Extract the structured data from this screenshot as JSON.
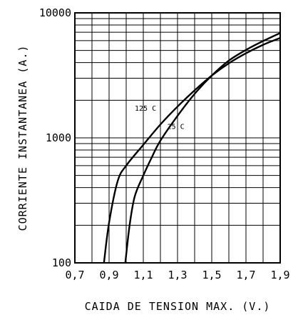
{
  "chart_data": {
    "type": "line",
    "xlabel": "CAIDA DE TENSION MAX. (V.)",
    "ylabel": "CORRIENTE INSTANTANEA (A.)",
    "xlim": [
      0.7,
      1.9
    ],
    "ylim": [
      100,
      10000
    ],
    "yscale": "log",
    "grid": true,
    "x_ticks": [
      0.7,
      0.9,
      1.1,
      1.3,
      1.5,
      1.7,
      1.9
    ],
    "x_tick_labels": [
      "0,7",
      "0,9",
      "1,1",
      "1,3",
      "1,5",
      "1,7",
      "1,9"
    ],
    "y_tick_labels": [
      {
        "value": 10000,
        "label": "10000"
      },
      {
        "value": 1000,
        "label": "1000"
      },
      {
        "value": 100,
        "label": "100"
      }
    ],
    "series": [
      {
        "name": "125 C",
        "points": [
          [
            0.87,
            100
          ],
          [
            0.9,
            210
          ],
          [
            0.95,
            450
          ],
          [
            1.0,
            600
          ],
          [
            1.1,
            880
          ],
          [
            1.2,
            1280
          ],
          [
            1.3,
            1780
          ],
          [
            1.4,
            2400
          ],
          [
            1.5,
            3150
          ],
          [
            1.6,
            3950
          ],
          [
            1.7,
            4750
          ],
          [
            1.8,
            5550
          ],
          [
            1.9,
            6300
          ]
        ]
      },
      {
        "name": "25 C",
        "points": [
          [
            0.995,
            100
          ],
          [
            1.02,
            200
          ],
          [
            1.05,
            340
          ],
          [
            1.1,
            500
          ],
          [
            1.15,
            700
          ],
          [
            1.2,
            950
          ],
          [
            1.3,
            1500
          ],
          [
            1.4,
            2250
          ],
          [
            1.5,
            3150
          ],
          [
            1.6,
            4150
          ],
          [
            1.7,
            5050
          ],
          [
            1.8,
            5950
          ],
          [
            1.9,
            6900
          ]
        ]
      }
    ],
    "annotations": [
      {
        "text": "125 C",
        "x": 1.05,
        "y": 1650
      },
      {
        "text": "25 C",
        "x": 1.24,
        "y": 1180
      }
    ]
  }
}
